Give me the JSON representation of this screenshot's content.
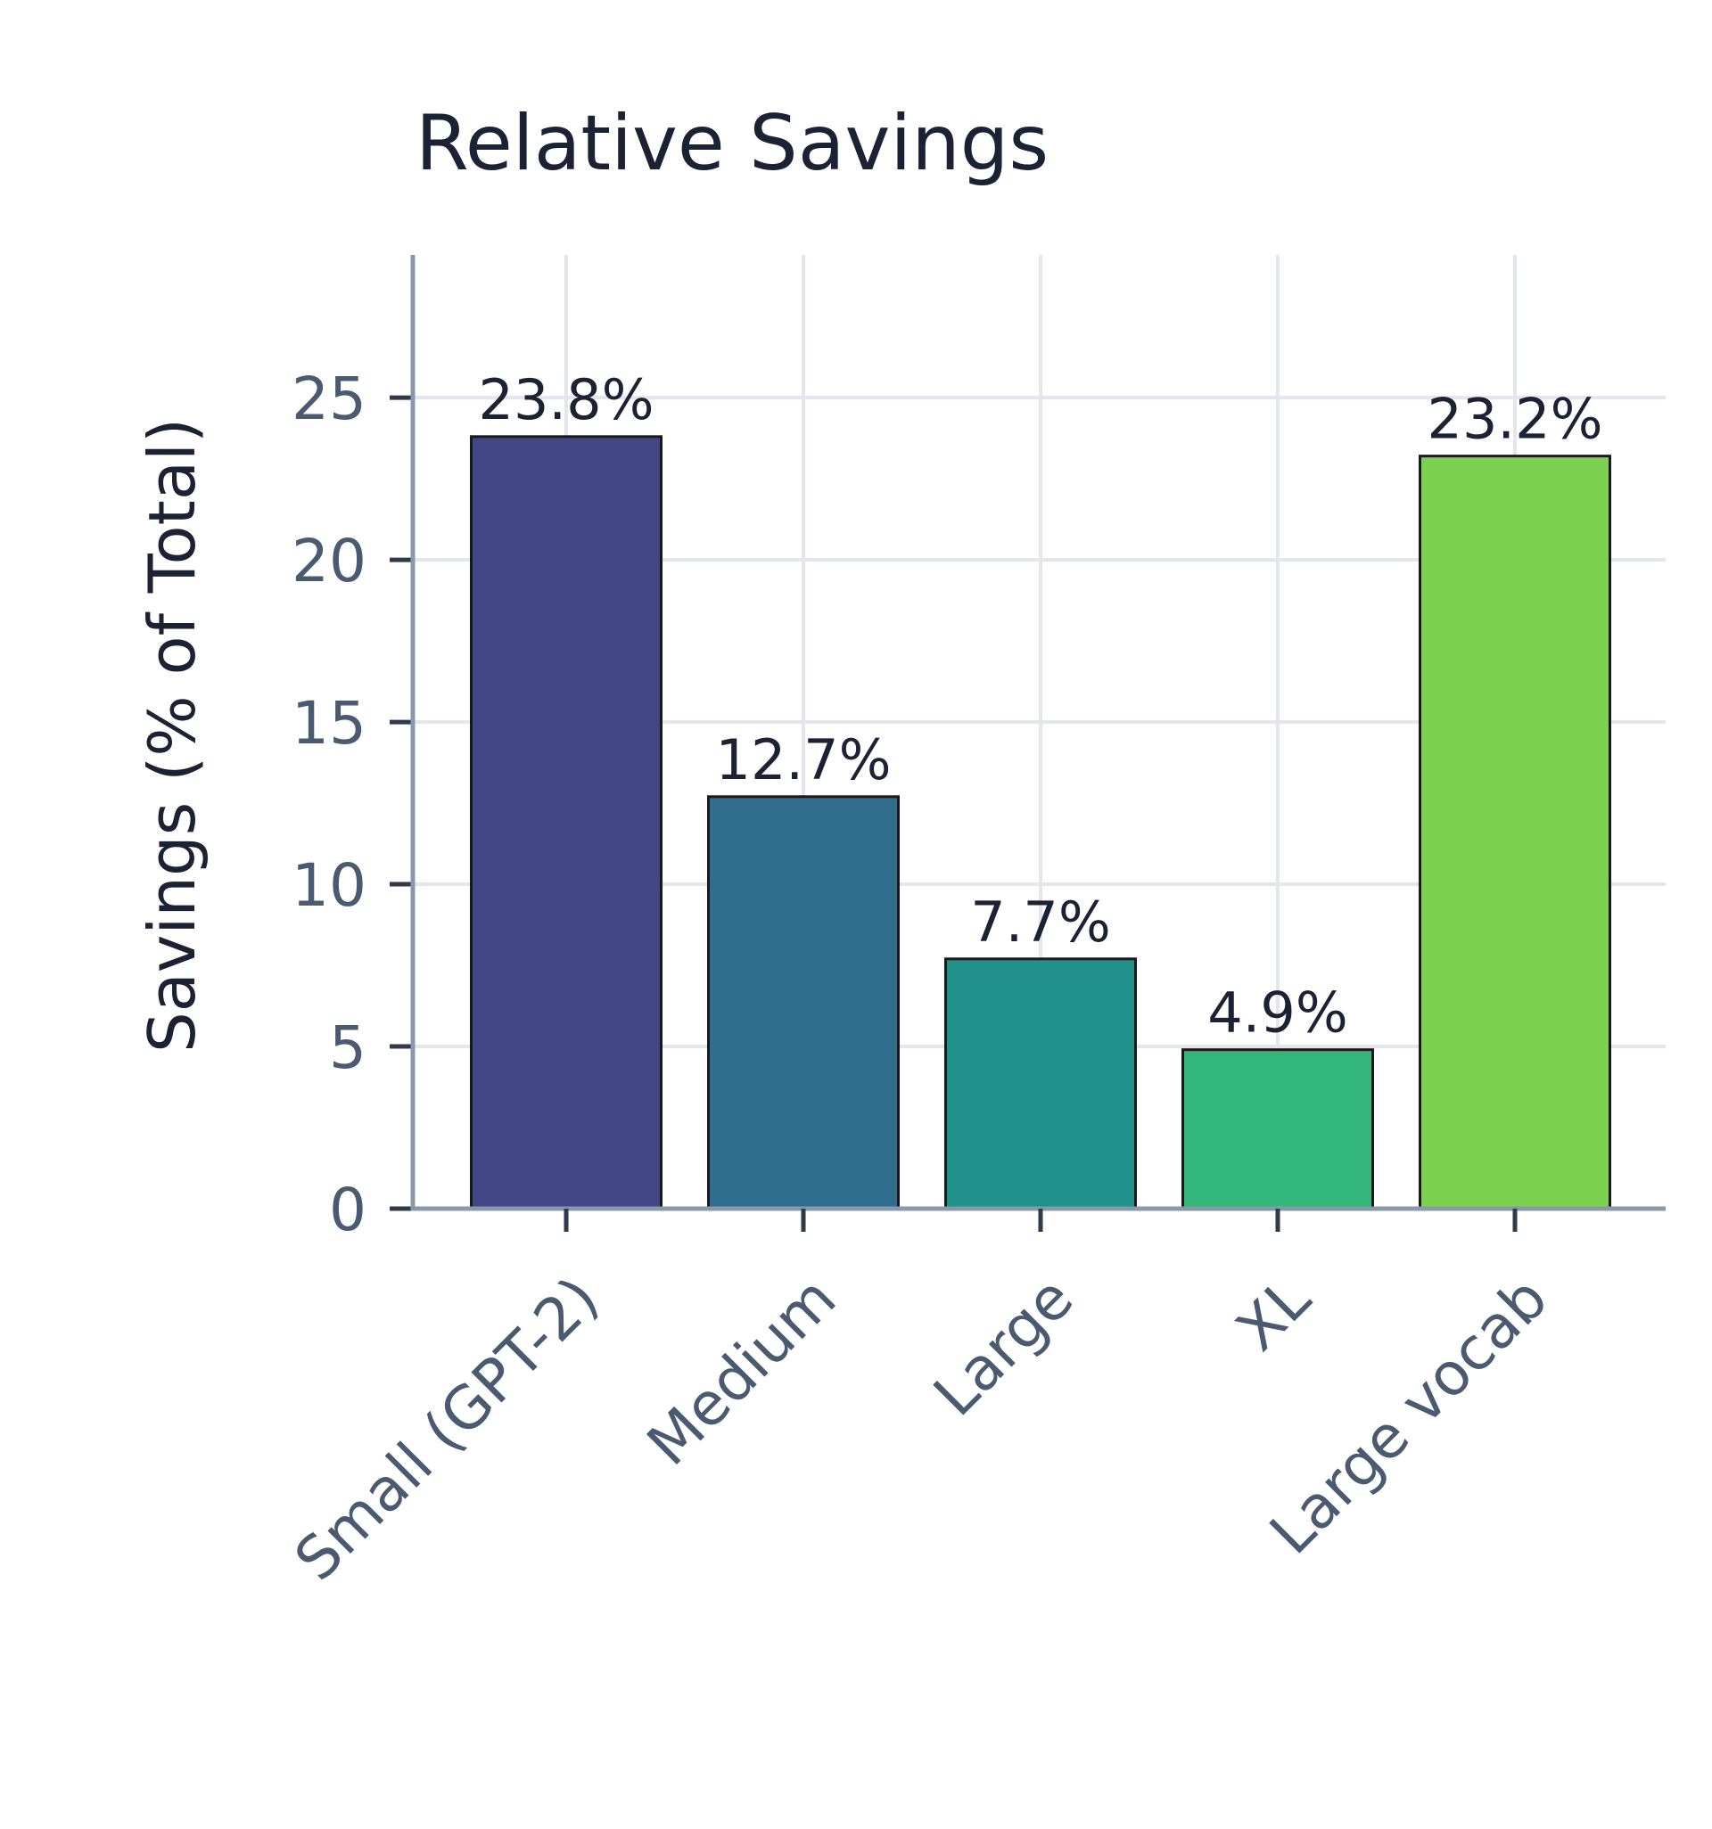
{
  "chart_data": {
    "type": "bar",
    "title": "Relative Savings",
    "xlabel": "",
    "ylabel": "Savings (% of Total)",
    "categories": [
      "Small (GPT-2)",
      "Medium",
      "Large",
      "XL",
      "Large vocab"
    ],
    "values": [
      23.8,
      12.7,
      7.7,
      4.9,
      23.2
    ],
    "data_labels": [
      "23.8%",
      "12.7%",
      "7.7%",
      "4.9%",
      "23.2%"
    ],
    "yticks": [
      "0",
      "5",
      "10",
      "15",
      "20",
      "25"
    ],
    "ylim": [
      0,
      29.4
    ],
    "grid": true,
    "legend": "none",
    "bar_colors": [
      "#424785",
      "#316d8c",
      "#21918b",
      "#33b679",
      "#7dd151"
    ],
    "colors": {
      "text": "#1a2233",
      "tick_text": "#4a5a70",
      "axis": "#8a98ac",
      "grid": "#e3e7ed",
      "bar_edge": "#1a1a1a"
    }
  }
}
